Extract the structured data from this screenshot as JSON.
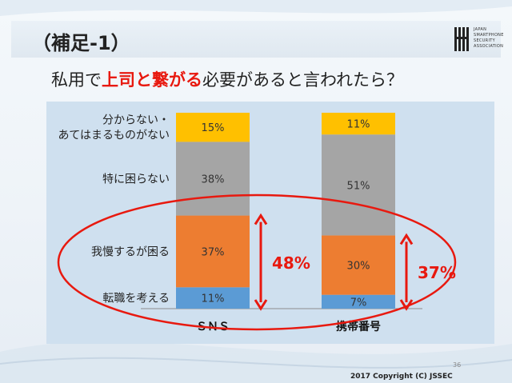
{
  "header": {
    "title": "（補足-1）",
    "logo_text": [
      "JAPAN",
      "SMARTPHONE",
      "SECURITY",
      "ASSOCIATION"
    ]
  },
  "subtitle": {
    "before": "私用で",
    "emphasis": "上司と繋がる",
    "after": "必要があると言われたら？"
  },
  "chart_data": {
    "type": "bar",
    "stacked": true,
    "categories": [
      "ＳＮＳ",
      "携帯番号"
    ],
    "series": [
      {
        "name": "転職を考える",
        "color": "#5b9bd5",
        "values": [
          11,
          7
        ],
        "labels": [
          "11%",
          "7%"
        ]
      },
      {
        "name": "我慢するが困る",
        "color": "#ed7d31",
        "values": [
          37,
          30
        ],
        "labels": [
          "37%",
          "30%"
        ]
      },
      {
        "name": "特に困らない",
        "color": "#a5a5a5",
        "values": [
          38,
          51
        ],
        "labels": [
          "38%",
          "51%"
        ]
      },
      {
        "name": "分からない・あてはまるものがない",
        "color": "#ffc000",
        "values": [
          15,
          11
        ],
        "labels": [
          "15%",
          "11%"
        ]
      }
    ],
    "row_labels": [
      [
        "転職を考える"
      ],
      [
        "我慢するが困る"
      ],
      [
        "特に困らない"
      ],
      [
        "分からない・",
        "あてはまるものがない"
      ]
    ],
    "annotations": [
      {
        "category": "ＳＮＳ",
        "text": "48%",
        "value": 48
      },
      {
        "category": "携帯番号",
        "text": "37%",
        "value": 37
      }
    ],
    "accent_color": "#e8190f"
  },
  "footer": {
    "page": "36",
    "copyright": "2017 Copyright (C) JSSEC"
  }
}
